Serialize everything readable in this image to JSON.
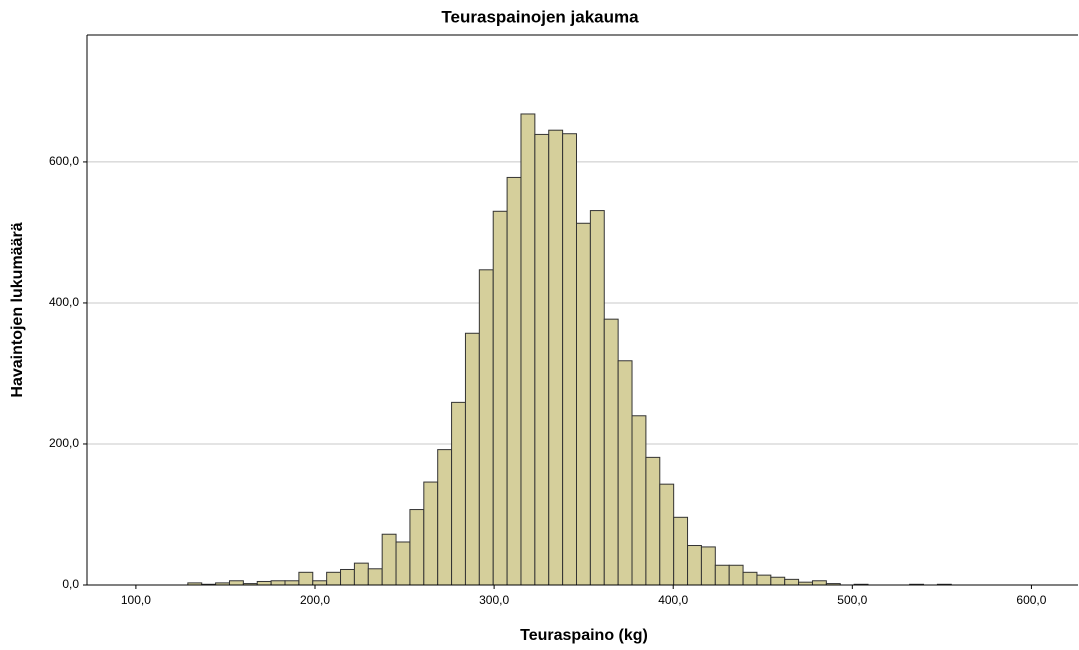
{
  "chart_data": {
    "type": "histogram",
    "title": "Teuraspainojen jakauma",
    "x_label": "Teuraspaino (kg)",
    "y_label": "Havaintojen lukumäärä",
    "bins": [
      129,
      136.75,
      144.5,
      152.25,
      160,
      167.75,
      175.5,
      183.25,
      191,
      198.75,
      206.5,
      214.25,
      222,
      229.75,
      237.5,
      245.25,
      253,
      260.75,
      268.5,
      276.25,
      284,
      291.75,
      299.5,
      307.25,
      315,
      322.75,
      330.5,
      338.25,
      346,
      353.75,
      361.5,
      369.25,
      377,
      384.75,
      392.5,
      400.25,
      408,
      415.75,
      423.5,
      431.25,
      439,
      446.75,
      454.5,
      462.25,
      470,
      477.75,
      485.5,
      493.25,
      501,
      508.75,
      516.5,
      524.25,
      532,
      539.75,
      547.5,
      555.25
    ],
    "values": [
      3,
      1,
      3,
      6,
      2,
      5,
      6,
      6,
      18,
      6,
      18,
      22,
      31,
      23,
      72,
      61,
      107,
      146,
      192,
      259,
      357,
      447,
      530,
      578,
      668,
      639,
      645,
      640,
      513,
      531,
      377,
      318,
      240,
      181,
      143,
      96,
      56,
      54,
      28,
      28,
      18,
      14,
      11,
      8,
      4,
      6,
      2,
      0,
      1,
      0,
      0,
      0,
      1,
      0,
      1
    ],
    "color": "#d5cf9b",
    "edge_color": "#333333",
    "xlim": [
      72.7,
      626
    ],
    "ylim": [
      0,
      780
    ],
    "xticks": [
      {
        "value": 100,
        "label": "100,0"
      },
      {
        "value": 200,
        "label": "200,0"
      },
      {
        "value": 300,
        "label": "300,0"
      },
      {
        "value": 400,
        "label": "400,0"
      },
      {
        "value": 500,
        "label": "500,0"
      },
      {
        "value": 600,
        "label": "600,0"
      }
    ],
    "yticks": [
      {
        "value": 0,
        "label": "0,0"
      },
      {
        "value": 200,
        "label": "200,0"
      },
      {
        "value": 400,
        "label": "400,0"
      },
      {
        "value": 600,
        "label": "600,0"
      }
    ],
    "grid": true
  }
}
